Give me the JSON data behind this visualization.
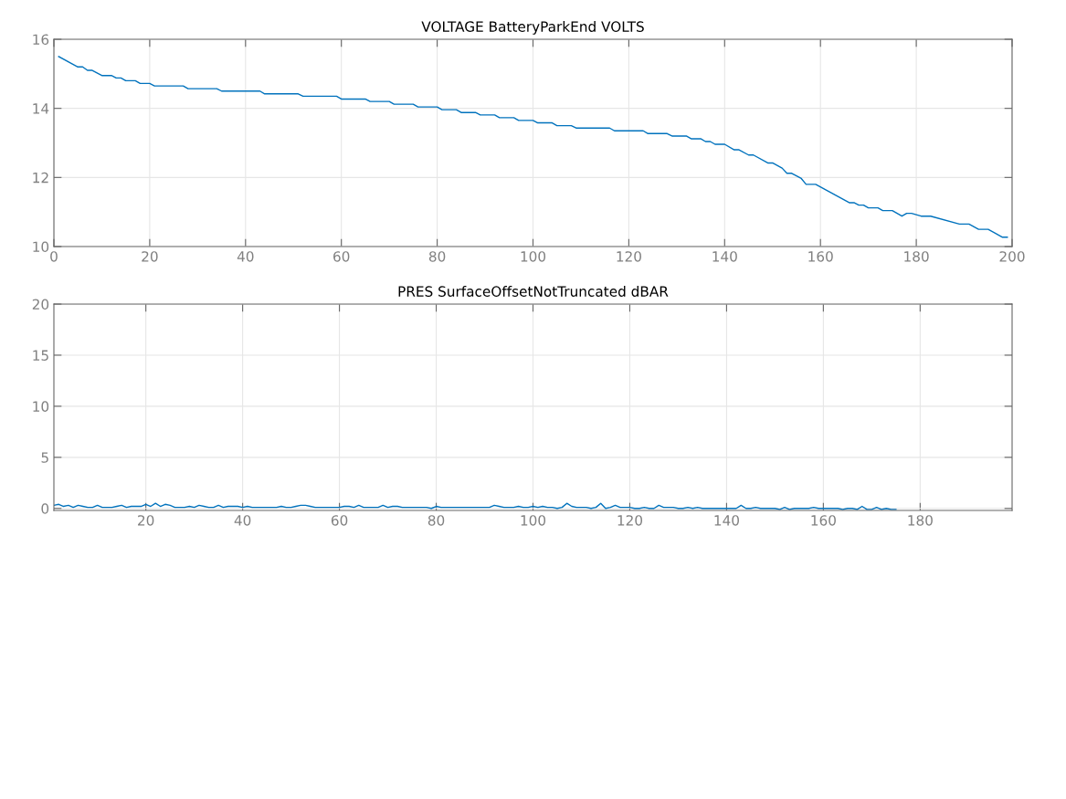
{
  "chart_data": [
    {
      "type": "line",
      "title": "VOLTAGE BatteryParkEnd VOLTS",
      "xlim": [
        0,
        200
      ],
      "xticks": [
        0,
        20,
        40,
        60,
        80,
        100,
        120,
        140,
        160,
        180,
        200
      ],
      "ylim": [
        10,
        16
      ],
      "yticks": [
        10,
        12,
        14,
        16
      ],
      "grid": true,
      "series": [
        {
          "color": "#0072bd",
          "x": [
            1,
            5,
            6,
            7,
            8,
            10,
            12,
            13,
            14,
            15,
            17,
            18,
            20,
            21,
            27,
            28,
            34,
            35,
            43,
            44,
            51,
            52,
            59,
            60,
            65,
            66,
            70,
            71,
            75,
            76,
            80,
            81,
            84,
            85,
            88,
            89,
            92,
            93,
            96,
            97,
            100,
            101,
            104,
            105,
            108,
            109,
            116,
            117,
            123,
            124,
            128,
            129,
            132,
            133,
            135,
            136,
            137,
            138,
            140,
            142,
            143,
            145,
            146,
            149,
            150,
            152,
            153,
            154,
            156,
            157,
            159,
            166,
            167,
            168,
            169,
            170,
            172,
            173,
            175,
            177,
            178,
            179,
            181,
            183,
            189,
            191,
            193,
            195,
            198,
            199
          ],
          "values": [
            15.5,
            15.2,
            15.2,
            15.1,
            15.1,
            14.95,
            14.95,
            14.88,
            14.88,
            14.8,
            14.8,
            14.72,
            14.72,
            14.65,
            14.65,
            14.57,
            14.57,
            14.5,
            14.5,
            14.42,
            14.42,
            14.35,
            14.35,
            14.27,
            14.27,
            14.2,
            14.2,
            14.12,
            14.12,
            14.04,
            14.04,
            13.96,
            13.96,
            13.88,
            13.88,
            13.81,
            13.81,
            13.73,
            13.73,
            13.65,
            13.65,
            13.58,
            13.58,
            13.5,
            13.5,
            13.43,
            13.43,
            13.35,
            13.35,
            13.27,
            13.27,
            13.2,
            13.2,
            13.12,
            13.12,
            13.04,
            13.04,
            12.96,
            12.96,
            12.8,
            12.8,
            12.65,
            12.65,
            12.42,
            12.42,
            12.27,
            12.12,
            12.12,
            11.97,
            11.8,
            11.8,
            11.27,
            11.27,
            11.2,
            11.2,
            11.12,
            11.12,
            11.04,
            11.04,
            10.88,
            10.96,
            10.96,
            10.88,
            10.88,
            10.65,
            10.65,
            10.5,
            10.5,
            10.27,
            10.27
          ]
        }
      ]
    },
    {
      "type": "line",
      "title": "PRES SurfaceOffsetNotTruncated dBAR",
      "xlim": [
        1,
        199
      ],
      "xticks": [
        20,
        40,
        60,
        80,
        100,
        120,
        140,
        160,
        180
      ],
      "ylim": [
        -0.2,
        20
      ],
      "yticks": [
        0,
        5,
        10,
        15,
        20
      ],
      "grid": true,
      "series": [
        {
          "color": "#0072bd",
          "x": [
            1,
            2,
            3,
            4,
            5,
            6,
            7,
            8,
            9,
            10,
            11,
            12,
            13,
            14,
            15,
            16,
            17,
            18,
            19,
            20,
            21,
            22,
            23,
            24,
            25,
            26,
            27,
            28,
            29,
            30,
            31,
            32,
            33,
            34,
            35,
            36,
            37,
            38,
            39,
            40,
            41,
            42,
            43,
            44,
            45,
            46,
            47,
            48,
            49,
            50,
            51,
            52,
            53,
            54,
            55,
            56,
            57,
            58,
            59,
            60,
            61,
            62,
            63,
            64,
            65,
            66,
            67,
            68,
            69,
            70,
            71,
            72,
            73,
            74,
            75,
            76,
            77,
            78,
            79,
            80,
            81,
            82,
            83,
            84,
            85,
            86,
            87,
            88,
            89,
            90,
            91,
            92,
            93,
            94,
            95,
            96,
            97,
            98,
            99,
            100,
            101,
            102,
            103,
            104,
            105,
            106,
            107,
            108,
            109,
            110,
            111,
            112,
            113,
            114,
            115,
            116,
            117,
            118,
            119,
            120,
            121,
            122,
            123,
            124,
            125,
            126,
            127,
            128,
            129,
            130,
            131,
            132,
            133,
            134,
            135,
            136,
            137,
            138,
            139,
            140,
            141,
            142,
            143,
            144,
            145,
            146,
            147,
            148,
            149,
            150,
            151,
            152,
            153,
            154,
            155,
            156,
            157,
            158,
            159,
            160,
            161,
            162,
            163,
            164,
            165,
            166,
            167,
            168,
            169,
            170,
            171,
            172,
            173,
            174,
            175
          ],
          "values": [
            0.3,
            0.4,
            0.2,
            0.3,
            0.1,
            0.3,
            0.2,
            0.1,
            0.1,
            0.3,
            0.1,
            0.1,
            0.1,
            0.2,
            0.3,
            0.1,
            0.2,
            0.2,
            0.2,
            0.4,
            0.2,
            0.5,
            0.2,
            0.4,
            0.3,
            0.1,
            0.1,
            0.1,
            0.2,
            0.1,
            0.3,
            0.2,
            0.1,
            0.1,
            0.3,
            0.1,
            0.2,
            0.2,
            0.2,
            0.1,
            0.2,
            0.1,
            0.1,
            0.1,
            0.1,
            0.1,
            0.1,
            0.2,
            0.1,
            0.1,
            0.2,
            0.3,
            0.3,
            0.2,
            0.1,
            0.1,
            0.1,
            0.1,
            0.1,
            0.1,
            0.2,
            0.2,
            0.1,
            0.3,
            0.1,
            0.1,
            0.1,
            0.1,
            0.3,
            0.1,
            0.2,
            0.2,
            0.1,
            0.1,
            0.1,
            0.1,
            0.1,
            0.1,
            0.0,
            0.2,
            0.1,
            0.1,
            0.1,
            0.1,
            0.1,
            0.1,
            0.1,
            0.1,
            0.1,
            0.1,
            0.1,
            0.3,
            0.2,
            0.1,
            0.1,
            0.1,
            0.2,
            0.1,
            0.1,
            0.2,
            0.1,
            0.2,
            0.1,
            0.1,
            0.0,
            0.1,
            0.5,
            0.2,
            0.1,
            0.1,
            0.1,
            0.0,
            0.1,
            0.5,
            0.0,
            0.1,
            0.3,
            0.1,
            0.1,
            0.1,
            0.0,
            0.0,
            0.1,
            0.0,
            0.0,
            0.3,
            0.1,
            0.1,
            0.1,
            0.0,
            0.0,
            0.1,
            0.0,
            0.1,
            0.0,
            0.0,
            0.0,
            0.0,
            0.0,
            0.0,
            0.0,
            0.0,
            0.3,
            0.0,
            0.0,
            0.1,
            0.0,
            0.0,
            0.0,
            0.0,
            -0.1,
            0.1,
            -0.1,
            0.0,
            0.0,
            0.0,
            0.0,
            0.1,
            0.0,
            0.0,
            0.0,
            0.0,
            0.0,
            -0.1,
            0.0,
            0.0,
            -0.1,
            0.2,
            -0.1,
            -0.1,
            0.1,
            -0.1,
            0.0,
            -0.1,
            -0.1
          ]
        }
      ]
    }
  ]
}
